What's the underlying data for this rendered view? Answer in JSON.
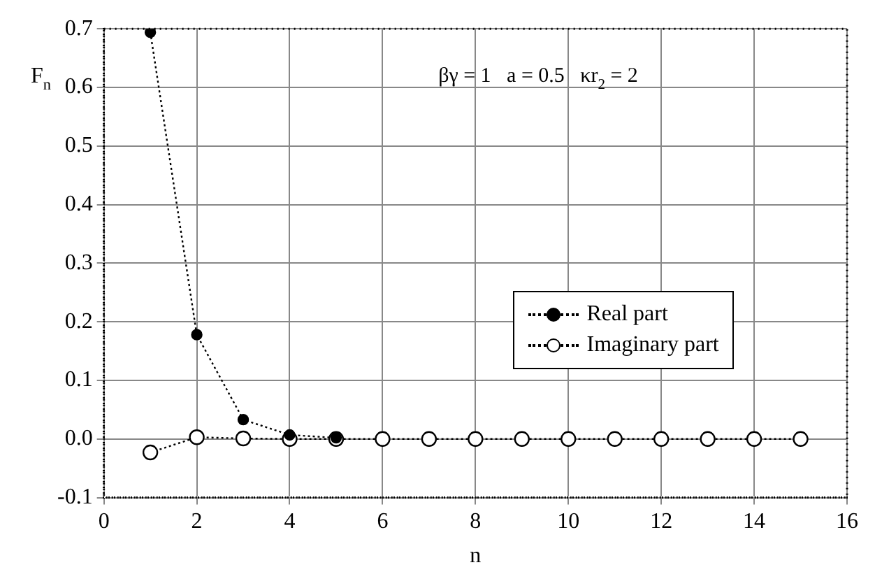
{
  "chart_data": {
    "type": "line",
    "xlabel": "n",
    "ylabel": "F$_{n}$",
    "annotations": [
      "βγ = 1   a = 0.5   κr$_{2}$ = 2"
    ],
    "x": [
      1,
      2,
      3,
      4,
      5,
      6,
      7,
      8,
      9,
      10,
      11,
      12,
      13,
      14,
      15
    ],
    "series": [
      {
        "name": "Real part",
        "color": "#000000",
        "x": [
          1,
          2,
          3,
          4,
          5
        ],
        "values": [
          0.694,
          0.178,
          0.033,
          0.007,
          0.002
        ]
      },
      {
        "name": "Imaginary part",
        "color": "#000000",
        "values": [
          -0.023,
          0.003,
          0.001,
          0.0,
          0.0,
          0.0,
          0.0,
          0.0,
          0.0,
          0.0,
          0.0,
          0.0,
          0.0,
          0.0,
          0.0
        ]
      }
    ],
    "xlim": [
      0,
      16
    ],
    "xticks": [
      0,
      2,
      4,
      6,
      8,
      10,
      12,
      14,
      16
    ],
    "ylim": [
      -0.1,
      0.7
    ],
    "yticks": [
      {
        "value": -0.1,
        "label": "-0.1"
      },
      {
        "value": 0,
        "label": "0.0"
      },
      {
        "value": 0.1,
        "label": "0.1"
      },
      {
        "value": 0.2,
        "label": "0.2"
      },
      {
        "value": 0.3,
        "label": "0.3"
      },
      {
        "value": 0.4,
        "label": "0.4"
      },
      {
        "value": 0.5,
        "label": "0.5"
      },
      {
        "value": 0.6,
        "label": "0.6"
      },
      {
        "value": 0.7,
        "label": "0.7"
      }
    ],
    "grid": true,
    "legend": "right",
    "marker": "circle",
    "line_style": "dotted"
  }
}
